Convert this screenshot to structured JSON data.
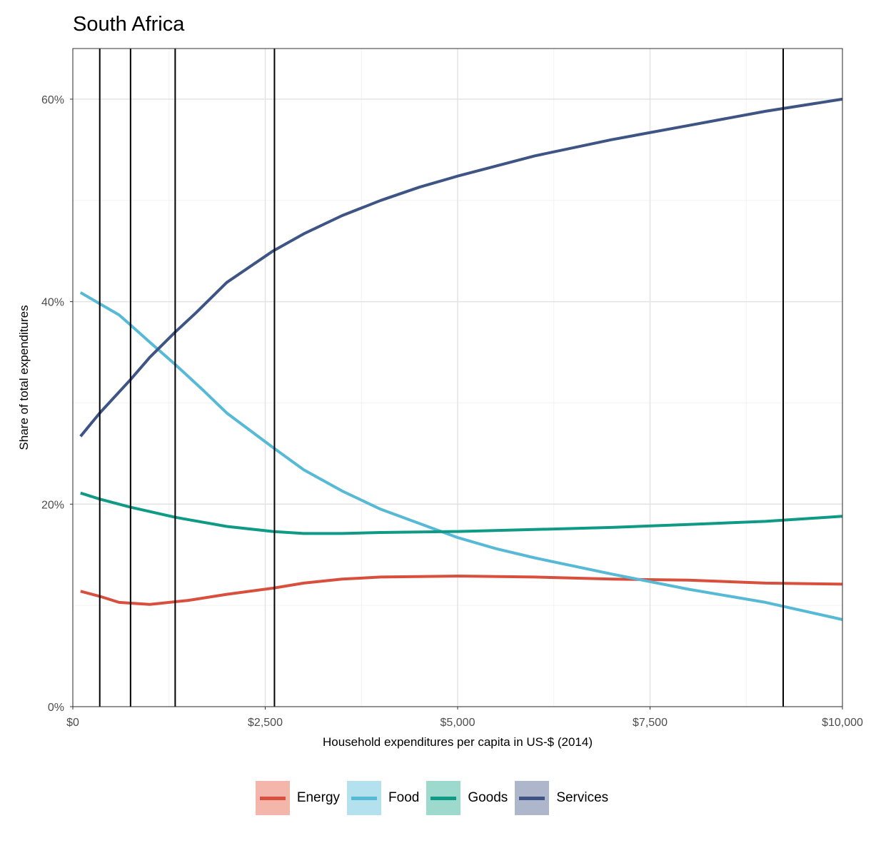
{
  "chart_data": {
    "type": "line",
    "title": "South Africa",
    "xlabel": "Household expenditures per capita in US-$ (2014)",
    "ylabel": "Share of total expenditures",
    "xlim": [
      0,
      10000
    ],
    "ylim": [
      0,
      65
    ],
    "x_ticks": [
      0,
      2500,
      5000,
      7500,
      10000
    ],
    "x_tick_labels": [
      "$0",
      "$2,500",
      "$5,000",
      "$7,500",
      "$10,000"
    ],
    "y_ticks": [
      0,
      20,
      40,
      60
    ],
    "y_tick_labels": [
      "0%",
      "20%",
      "40%",
      "60%"
    ],
    "grid": true,
    "vertical_lines": [
      350,
      750,
      1330,
      2620,
      9230
    ],
    "legend_position": "bottom",
    "series": [
      {
        "name": "Energy",
        "color": "#d94f3d",
        "key_fill": "#f4b5ab",
        "points": [
          [
            100,
            11.4
          ],
          [
            350,
            10.9
          ],
          [
            600,
            10.3
          ],
          [
            1000,
            10.1
          ],
          [
            1500,
            10.5
          ],
          [
            2000,
            11.1
          ],
          [
            2600,
            11.7
          ],
          [
            3000,
            12.2
          ],
          [
            3500,
            12.6
          ],
          [
            4000,
            12.8
          ],
          [
            5000,
            12.9
          ],
          [
            6000,
            12.8
          ],
          [
            7000,
            12.6
          ],
          [
            8000,
            12.5
          ],
          [
            9000,
            12.2
          ],
          [
            10000,
            12.1
          ]
        ]
      },
      {
        "name": "Food",
        "color": "#56b9d6",
        "key_fill": "#b3e1ee",
        "points": [
          [
            100,
            40.9
          ],
          [
            350,
            39.8
          ],
          [
            600,
            38.7
          ],
          [
            750,
            37.7
          ],
          [
            1000,
            36.0
          ],
          [
            1330,
            33.8
          ],
          [
            1700,
            31.2
          ],
          [
            2000,
            29.0
          ],
          [
            2600,
            25.6
          ],
          [
            3000,
            23.4
          ],
          [
            3500,
            21.3
          ],
          [
            4000,
            19.5
          ],
          [
            5000,
            16.7
          ],
          [
            5500,
            15.6
          ],
          [
            6000,
            14.7
          ],
          [
            7000,
            13.1
          ],
          [
            8000,
            11.6
          ],
          [
            9000,
            10.3
          ],
          [
            10000,
            8.6
          ]
        ]
      },
      {
        "name": "Goods",
        "color": "#0f9a86",
        "key_fill": "#9ed9ce",
        "points": [
          [
            100,
            21.1
          ],
          [
            350,
            20.5
          ],
          [
            750,
            19.7
          ],
          [
            1330,
            18.7
          ],
          [
            2000,
            17.8
          ],
          [
            2600,
            17.3
          ],
          [
            3000,
            17.1
          ],
          [
            3500,
            17.1
          ],
          [
            4000,
            17.2
          ],
          [
            5000,
            17.3
          ],
          [
            6000,
            17.5
          ],
          [
            7000,
            17.7
          ],
          [
            8000,
            18.0
          ],
          [
            9000,
            18.3
          ],
          [
            10000,
            18.8
          ]
        ]
      },
      {
        "name": "Services",
        "color": "#3d5485",
        "key_fill": "#adb6cb",
        "points": [
          [
            100,
            26.7
          ],
          [
            350,
            29.0
          ],
          [
            750,
            32.3
          ],
          [
            1000,
            34.5
          ],
          [
            1330,
            37.0
          ],
          [
            1600,
            38.9
          ],
          [
            2000,
            41.9
          ],
          [
            2600,
            45.0
          ],
          [
            3000,
            46.7
          ],
          [
            3500,
            48.5
          ],
          [
            4000,
            50.0
          ],
          [
            4500,
            51.3
          ],
          [
            5000,
            52.4
          ],
          [
            6000,
            54.4
          ],
          [
            7000,
            56.0
          ],
          [
            8000,
            57.4
          ],
          [
            9000,
            58.8
          ],
          [
            10000,
            60.0
          ]
        ]
      }
    ]
  }
}
